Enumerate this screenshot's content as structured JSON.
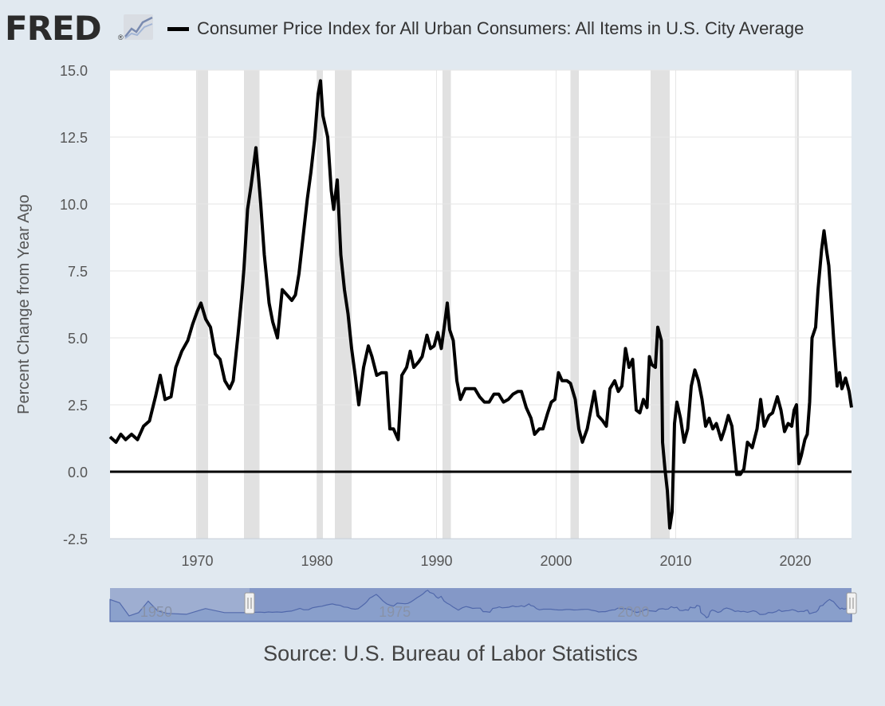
{
  "header": {
    "logo_text": "FRED",
    "logo_registered": "®",
    "logo_icon": "line-chart-icon",
    "legend_label": "Consumer Price Index for All Urban Consumers: All Items in U.S. City Average"
  },
  "source": "Source: U.S. Bureau of Labor Statistics",
  "colors": {
    "background": "#e1e9f0",
    "plot_background": "#ffffff",
    "series": "#000000",
    "recession": "#e1e1e1",
    "gridline": "#e6e6e6",
    "navigator_fill": "#9eaed1",
    "navigator_selected": "#6f87c0"
  },
  "navigator": {
    "tick_labels": [
      "1950",
      "1975",
      "2000"
    ],
    "handle_left": "handle-left",
    "handle_right": "handle-right"
  },
  "chart_data": {
    "type": "line",
    "title": "Consumer Price Index for All Urban Consumers: All Items in U.S. City Average",
    "xlabel": "",
    "ylabel": "Percent Change from Year Ago",
    "xlim": [
      1962.7,
      2024.7
    ],
    "ylim": [
      -2.5,
      15.0
    ],
    "yticks": [
      -2.5,
      0.0,
      2.5,
      5.0,
      7.5,
      10.0,
      12.5,
      15.0
    ],
    "ytick_labels": [
      "-2.5",
      "0.0",
      "2.5",
      "5.0",
      "7.5",
      "10.0",
      "12.5",
      "15.0"
    ],
    "xticks": [
      1970,
      1980,
      1990,
      2000,
      2010,
      2020
    ],
    "xtick_labels": [
      "1970",
      "1980",
      "1990",
      "2000",
      "2010",
      "2020"
    ],
    "grid": true,
    "legend_position": "top",
    "recessions": [
      [
        1969.9,
        1970.9
      ],
      [
        1973.9,
        1975.2
      ],
      [
        1980.0,
        1980.5
      ],
      [
        1981.5,
        1982.9
      ],
      [
        1990.5,
        1991.2
      ],
      [
        2001.2,
        2001.9
      ],
      [
        2007.9,
        2009.5
      ],
      [
        2020.1,
        2020.3
      ]
    ],
    "series": [
      {
        "name": "Consumer Price Index for All Urban Consumers: All Items in U.S. City Average",
        "points": [
          [
            1962.7,
            1.3
          ],
          [
            1963.2,
            1.1
          ],
          [
            1963.6,
            1.4
          ],
          [
            1964.0,
            1.2
          ],
          [
            1964.5,
            1.4
          ],
          [
            1965.0,
            1.2
          ],
          [
            1965.5,
            1.7
          ],
          [
            1966.0,
            1.9
          ],
          [
            1966.5,
            2.8
          ],
          [
            1966.9,
            3.6
          ],
          [
            1967.3,
            2.7
          ],
          [
            1967.8,
            2.8
          ],
          [
            1968.2,
            3.9
          ],
          [
            1968.7,
            4.5
          ],
          [
            1969.2,
            4.9
          ],
          [
            1969.6,
            5.5
          ],
          [
            1970.0,
            6.0
          ],
          [
            1970.3,
            6.3
          ],
          [
            1970.7,
            5.7
          ],
          [
            1971.1,
            5.4
          ],
          [
            1971.5,
            4.4
          ],
          [
            1971.9,
            4.2
          ],
          [
            1972.3,
            3.4
          ],
          [
            1972.7,
            3.1
          ],
          [
            1973.0,
            3.4
          ],
          [
            1973.4,
            5.1
          ],
          [
            1973.7,
            6.5
          ],
          [
            1973.9,
            7.6
          ],
          [
            1974.2,
            9.8
          ],
          [
            1974.5,
            10.7
          ],
          [
            1974.7,
            11.4
          ],
          [
            1974.9,
            12.1
          ],
          [
            1975.1,
            11.1
          ],
          [
            1975.3,
            10.0
          ],
          [
            1975.6,
            8.1
          ],
          [
            1976.0,
            6.3
          ],
          [
            1976.3,
            5.6
          ],
          [
            1976.7,
            5.0
          ],
          [
            1977.1,
            6.8
          ],
          [
            1977.5,
            6.6
          ],
          [
            1977.9,
            6.4
          ],
          [
            1978.2,
            6.6
          ],
          [
            1978.5,
            7.4
          ],
          [
            1978.8,
            8.6
          ],
          [
            1979.2,
            10.2
          ],
          [
            1979.5,
            11.2
          ],
          [
            1979.8,
            12.4
          ],
          [
            1980.1,
            14.1
          ],
          [
            1980.3,
            14.6
          ],
          [
            1980.5,
            13.3
          ],
          [
            1980.9,
            12.5
          ],
          [
            1981.2,
            10.5
          ],
          [
            1981.4,
            9.8
          ],
          [
            1981.7,
            10.9
          ],
          [
            1982.0,
            8.1
          ],
          [
            1982.3,
            6.8
          ],
          [
            1982.6,
            5.9
          ],
          [
            1982.9,
            4.6
          ],
          [
            1983.2,
            3.6
          ],
          [
            1983.5,
            2.5
          ],
          [
            1983.9,
            3.9
          ],
          [
            1984.3,
            4.7
          ],
          [
            1984.6,
            4.3
          ],
          [
            1985.0,
            3.6
          ],
          [
            1985.4,
            3.7
          ],
          [
            1985.8,
            3.7
          ],
          [
            1986.1,
            1.6
          ],
          [
            1986.4,
            1.6
          ],
          [
            1986.8,
            1.2
          ],
          [
            1987.1,
            3.6
          ],
          [
            1987.5,
            3.9
          ],
          [
            1987.8,
            4.5
          ],
          [
            1988.1,
            3.9
          ],
          [
            1988.5,
            4.1
          ],
          [
            1988.8,
            4.3
          ],
          [
            1989.2,
            5.1
          ],
          [
            1989.5,
            4.6
          ],
          [
            1989.8,
            4.7
          ],
          [
            1990.1,
            5.2
          ],
          [
            1990.4,
            4.6
          ],
          [
            1990.7,
            5.6
          ],
          [
            1990.9,
            6.3
          ],
          [
            1991.1,
            5.3
          ],
          [
            1991.4,
            4.9
          ],
          [
            1991.7,
            3.4
          ],
          [
            1992.0,
            2.7
          ],
          [
            1992.4,
            3.1
          ],
          [
            1992.8,
            3.1
          ],
          [
            1993.2,
            3.1
          ],
          [
            1993.6,
            2.8
          ],
          [
            1994.0,
            2.6
          ],
          [
            1994.4,
            2.6
          ],
          [
            1994.8,
            2.9
          ],
          [
            1995.2,
            2.9
          ],
          [
            1995.6,
            2.6
          ],
          [
            1996.0,
            2.7
          ],
          [
            1996.4,
            2.9
          ],
          [
            1996.8,
            3.0
          ],
          [
            1997.1,
            3.0
          ],
          [
            1997.5,
            2.4
          ],
          [
            1997.9,
            2.0
          ],
          [
            1998.2,
            1.4
          ],
          [
            1998.6,
            1.6
          ],
          [
            1998.9,
            1.6
          ],
          [
            1999.3,
            2.2
          ],
          [
            1999.6,
            2.6
          ],
          [
            1999.9,
            2.7
          ],
          [
            2000.2,
            3.7
          ],
          [
            2000.5,
            3.4
          ],
          [
            2000.9,
            3.4
          ],
          [
            2001.2,
            3.3
          ],
          [
            2001.6,
            2.7
          ],
          [
            2001.9,
            1.6
          ],
          [
            2002.2,
            1.1
          ],
          [
            2002.6,
            1.6
          ],
          [
            2002.9,
            2.3
          ],
          [
            2003.2,
            3.0
          ],
          [
            2003.5,
            2.1
          ],
          [
            2003.9,
            1.9
          ],
          [
            2004.2,
            1.7
          ],
          [
            2004.5,
            3.1
          ],
          [
            2004.9,
            3.4
          ],
          [
            2005.2,
            3.0
          ],
          [
            2005.5,
            3.2
          ],
          [
            2005.8,
            4.6
          ],
          [
            2006.1,
            3.9
          ],
          [
            2006.4,
            4.2
          ],
          [
            2006.7,
            2.3
          ],
          [
            2007.0,
            2.2
          ],
          [
            2007.3,
            2.7
          ],
          [
            2007.6,
            2.4
          ],
          [
            2007.8,
            4.3
          ],
          [
            2008.0,
            4.0
          ],
          [
            2008.3,
            3.9
          ],
          [
            2008.5,
            5.4
          ],
          [
            2008.8,
            4.9
          ],
          [
            2008.9,
            1.1
          ],
          [
            2009.1,
            0.1
          ],
          [
            2009.3,
            -0.7
          ],
          [
            2009.5,
            -2.1
          ],
          [
            2009.7,
            -1.5
          ],
          [
            2009.9,
            1.8
          ],
          [
            2010.1,
            2.6
          ],
          [
            2010.4,
            2.0
          ],
          [
            2010.7,
            1.1
          ],
          [
            2011.0,
            1.6
          ],
          [
            2011.3,
            3.2
          ],
          [
            2011.6,
            3.8
          ],
          [
            2011.9,
            3.4
          ],
          [
            2012.2,
            2.7
          ],
          [
            2012.5,
            1.7
          ],
          [
            2012.8,
            2.0
          ],
          [
            2013.1,
            1.6
          ],
          [
            2013.4,
            1.8
          ],
          [
            2013.8,
            1.2
          ],
          [
            2014.1,
            1.6
          ],
          [
            2014.4,
            2.1
          ],
          [
            2014.7,
            1.7
          ],
          [
            2014.9,
            0.8
          ],
          [
            2015.1,
            -0.1
          ],
          [
            2015.4,
            -0.1
          ],
          [
            2015.7,
            0.1
          ],
          [
            2016.0,
            1.1
          ],
          [
            2016.4,
            0.9
          ],
          [
            2016.8,
            1.6
          ],
          [
            2017.1,
            2.7
          ],
          [
            2017.4,
            1.7
          ],
          [
            2017.8,
            2.1
          ],
          [
            2018.1,
            2.2
          ],
          [
            2018.5,
            2.8
          ],
          [
            2018.8,
            2.3
          ],
          [
            2019.1,
            1.5
          ],
          [
            2019.4,
            1.8
          ],
          [
            2019.7,
            1.7
          ],
          [
            2019.9,
            2.3
          ],
          [
            2020.1,
            2.5
          ],
          [
            2020.3,
            0.3
          ],
          [
            2020.5,
            0.6
          ],
          [
            2020.8,
            1.2
          ],
          [
            2021.0,
            1.4
          ],
          [
            2021.2,
            2.6
          ],
          [
            2021.4,
            5.0
          ],
          [
            2021.7,
            5.4
          ],
          [
            2021.9,
            6.8
          ],
          [
            2022.2,
            8.3
          ],
          [
            2022.4,
            9.0
          ],
          [
            2022.6,
            8.3
          ],
          [
            2022.8,
            7.7
          ],
          [
            2023.0,
            6.4
          ],
          [
            2023.2,
            5.0
          ],
          [
            2023.5,
            3.2
          ],
          [
            2023.7,
            3.7
          ],
          [
            2023.9,
            3.1
          ],
          [
            2024.2,
            3.5
          ],
          [
            2024.5,
            3.0
          ],
          [
            2024.7,
            2.4
          ]
        ]
      }
    ]
  }
}
